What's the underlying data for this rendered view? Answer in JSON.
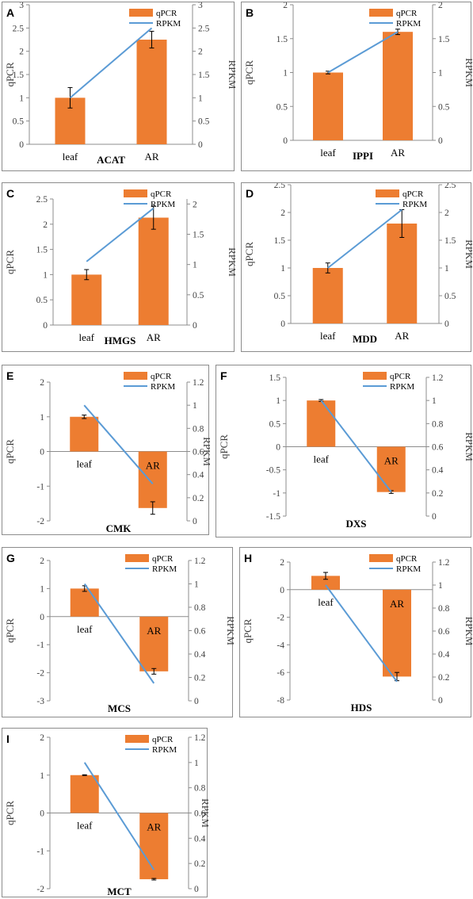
{
  "colors": {
    "bar": "#ED7D31",
    "line": "#5B9BD5",
    "error": "#000000",
    "axis": "#8c8c8c"
  },
  "chart_data": [
    {
      "panel": "A",
      "type": "bar",
      "gene": "ACAT",
      "categories": [
        "leaf",
        "AR"
      ],
      "series": [
        {
          "name": "qPCR",
          "type": "bar",
          "values": [
            1.0,
            2.25
          ],
          "error": [
            0.22,
            0.18
          ]
        },
        {
          "name": "RPKM",
          "type": "line",
          "axis": "right",
          "values": [
            1.0,
            2.5
          ]
        }
      ],
      "ylabel": "qPCR",
      "y2label": "RPKM",
      "yticks": [
        "0",
        "0.5",
        "1",
        "1.5",
        "2",
        "2.5",
        "3"
      ],
      "y2ticks": [
        "0",
        "0.5",
        "1",
        "1.5",
        "2",
        "2.5",
        "3"
      ],
      "ylim": [
        0,
        3
      ],
      "y2lim": [
        0,
        3
      ]
    },
    {
      "panel": "B",
      "type": "bar",
      "gene": "IPPI",
      "categories": [
        "leaf",
        "AR"
      ],
      "series": [
        {
          "name": "qPCR",
          "type": "bar",
          "values": [
            1.0,
            1.6
          ],
          "error": [
            0.02,
            0.04
          ]
        },
        {
          "name": "RPKM",
          "type": "line",
          "axis": "right",
          "values": [
            1.0,
            1.6
          ]
        }
      ],
      "ylabel": "qPCR",
      "y2label": "RPKM",
      "yticks": [
        "0",
        "0.5",
        "1",
        "1.5",
        "2"
      ],
      "y2ticks": [
        "0",
        "0.5",
        "1",
        "1.5",
        "2"
      ],
      "ylim": [
        0,
        2
      ],
      "y2lim": [
        0,
        2
      ]
    },
    {
      "panel": "C",
      "type": "bar",
      "gene": "HMGS",
      "categories": [
        "leaf",
        "AR"
      ],
      "series": [
        {
          "name": "qPCR",
          "type": "bar",
          "values": [
            1.0,
            2.13
          ],
          "error": [
            0.1,
            0.23
          ]
        },
        {
          "name": "RPKM",
          "type": "line",
          "axis": "right",
          "values": [
            1.05,
            1.93
          ]
        }
      ],
      "ylabel": "qPCR",
      "y2label": "RPKM",
      "yticks": [
        "0",
        "0.5",
        "1",
        "1.5",
        "2",
        "2.5"
      ],
      "y2ticks": [
        "0",
        "0.5",
        "1",
        "1.5",
        "2"
      ],
      "ylim": [
        0,
        2.5
      ],
      "y2lim": [
        0,
        2.083
      ]
    },
    {
      "panel": "D",
      "type": "bar",
      "gene": "MDD",
      "categories": [
        "leaf",
        "AR"
      ],
      "series": [
        {
          "name": "qPCR",
          "type": "bar",
          "values": [
            1.0,
            1.8
          ],
          "error": [
            0.09,
            0.25
          ]
        },
        {
          "name": "RPKM",
          "type": "line",
          "axis": "right",
          "values": [
            1.0,
            2.05
          ]
        }
      ],
      "ylabel": "qPCR",
      "y2label": "RPKM",
      "yticks": [
        "0",
        "0.5",
        "1",
        "1.5",
        "2",
        "2.5"
      ],
      "y2ticks": [
        "0",
        "0.5",
        "1",
        "1.5",
        "2",
        "2.5"
      ],
      "ylim": [
        0,
        2.5
      ],
      "y2lim": [
        0,
        2.5
      ]
    },
    {
      "panel": "E",
      "type": "bar",
      "gene": "CMK",
      "categories": [
        "leaf",
        "AR"
      ],
      "series": [
        {
          "name": "qPCR",
          "type": "bar",
          "values": [
            1.0,
            -1.63
          ],
          "error": [
            0.05,
            0.18
          ]
        },
        {
          "name": "RPKM",
          "type": "line",
          "axis": "right",
          "values": [
            1.0,
            0.32
          ]
        }
      ],
      "ylabel": "qPCR",
      "y2label": "RPKM",
      "yticks": [
        "-2",
        "-1",
        "0",
        "1",
        "2"
      ],
      "y2ticks": [
        "0",
        "0.2",
        "0.4",
        "0.6",
        "0.8",
        "1",
        "1.2"
      ],
      "ylim": [
        -2,
        2
      ],
      "y2lim": [
        0,
        1.2
      ]
    },
    {
      "panel": "F",
      "type": "bar",
      "gene": "DXS",
      "categories": [
        "leaf",
        "AR"
      ],
      "series": [
        {
          "name": "qPCR",
          "type": "bar",
          "values": [
            1.0,
            -0.98
          ],
          "error": [
            0.02,
            0.03
          ]
        },
        {
          "name": "RPKM",
          "type": "line",
          "axis": "right",
          "values": [
            1.0,
            0.21
          ]
        }
      ],
      "ylabel": "qPCR",
      "y2label": "RPKM",
      "yticks": [
        "-1.5",
        "-1",
        "-0.5",
        "0",
        "0.5",
        "1",
        "1.5"
      ],
      "y2ticks": [
        "0",
        "0.2",
        "0.4",
        "0.6",
        "0.8",
        "1",
        "1.2"
      ],
      "ylim": [
        -1.5,
        1.5
      ],
      "y2lim": [
        0,
        1.2
      ]
    },
    {
      "panel": "G",
      "type": "bar",
      "gene": "MCS",
      "categories": [
        "leaf",
        "AR"
      ],
      "series": [
        {
          "name": "qPCR",
          "type": "bar",
          "values": [
            1.0,
            -1.95
          ],
          "error": [
            0.1,
            0.1
          ]
        },
        {
          "name": "RPKM",
          "type": "line",
          "axis": "right",
          "values": [
            1.0,
            0.15
          ]
        }
      ],
      "ylabel": "qPCR",
      "y2label": "RPKM",
      "yticks": [
        "-3",
        "-2",
        "-1",
        "0",
        "1",
        "2"
      ],
      "y2ticks": [
        "0",
        "0.2",
        "0.4",
        "0.6",
        "0.8",
        "1",
        "1.2"
      ],
      "ylim": [
        -3,
        2
      ],
      "y2lim": [
        0,
        1.2
      ]
    },
    {
      "panel": "H",
      "type": "bar",
      "gene": "HDS",
      "categories": [
        "leaf",
        "AR"
      ],
      "series": [
        {
          "name": "qPCR",
          "type": "bar",
          "values": [
            1.0,
            -6.3
          ],
          "error": [
            0.25,
            0.3
          ]
        },
        {
          "name": "RPKM",
          "type": "line",
          "axis": "right",
          "values": [
            1.0,
            0.16
          ]
        }
      ],
      "ylabel": "qPCR",
      "y2label": "RPKM",
      "yticks": [
        "-8",
        "-6",
        "-4",
        "-2",
        "0",
        "2"
      ],
      "y2ticks": [
        "0",
        "0.2",
        "0.4",
        "0.6",
        "0.8",
        "1",
        "1.2"
      ],
      "ylim": [
        -8,
        2
      ],
      "y2lim": [
        0,
        1.2
      ]
    },
    {
      "panel": "I",
      "type": "bar",
      "gene": "MCT",
      "categories": [
        "leaf",
        "AR"
      ],
      "series": [
        {
          "name": "qPCR",
          "type": "bar",
          "values": [
            1.0,
            -1.75
          ],
          "error": [
            0.01,
            0.02
          ]
        },
        {
          "name": "RPKM",
          "type": "line",
          "axis": "right",
          "values": [
            1.0,
            0.15
          ]
        }
      ],
      "ylabel": "qPCR",
      "y2label": "RPKM",
      "yticks": [
        "-2",
        "-1",
        "0",
        "1",
        "2"
      ],
      "y2ticks": [
        "0",
        "0.2",
        "0.4",
        "0.6",
        "0.8",
        "1",
        "1.2"
      ],
      "ylim": [
        -2,
        2
      ],
      "y2lim": [
        0,
        1.2
      ]
    }
  ]
}
